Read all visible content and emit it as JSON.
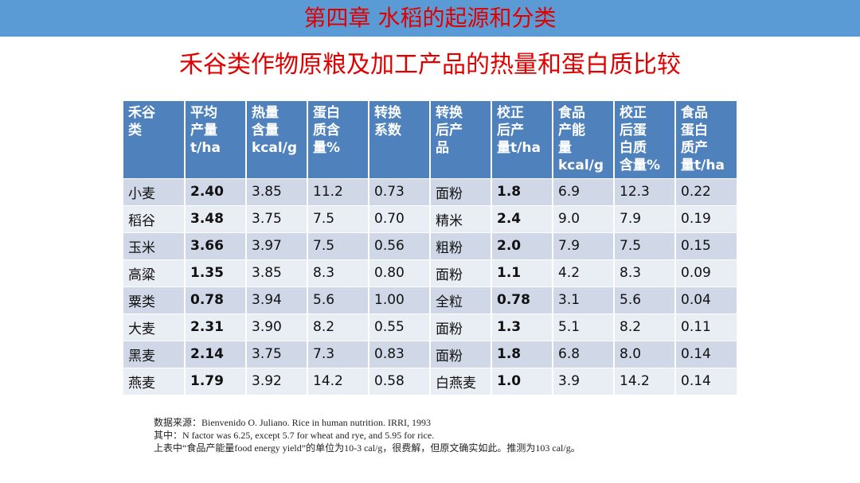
{
  "chapter_title": "第四章  水稻的起源和分类",
  "slide_title": "禾谷类作物原粮及加工产品的热量和蛋白质比较",
  "table": {
    "headers": [
      [
        "禾谷",
        "类"
      ],
      [
        "平均",
        "产量",
        "t/ha"
      ],
      [
        "热量",
        "含量",
        "kcal/g"
      ],
      [
        "蛋白",
        "质含",
        "量%"
      ],
      [
        "转换",
        "系数"
      ],
      [
        "转换",
        "后产",
        "品"
      ],
      [
        "校正",
        "后产",
        "量t/ha"
      ],
      [
        "食品",
        "产能",
        "量",
        "kcal/g"
      ],
      [
        "校正",
        "后蛋",
        "白质",
        "含量%"
      ],
      [
        "食品",
        "蛋白",
        "质产",
        "量t/ha"
      ]
    ],
    "rows": [
      [
        "小麦",
        "2.40",
        "3.85",
        "11.2",
        "0.73",
        "面粉",
        "1.8",
        "6.9",
        "12.3",
        "0.22"
      ],
      [
        "稻谷",
        "3.48",
        "3.75",
        "7.5",
        "0.70",
        "精米",
        "2.4",
        "9.0",
        "7.9",
        "0.19"
      ],
      [
        "玉米",
        "3.66",
        "3.97",
        "7.5",
        "0.56",
        "粗粉",
        "2.0",
        "7.9",
        "7.5",
        "0.15"
      ],
      [
        "高粱",
        "1.35",
        "3.85",
        "8.3",
        "0.80",
        "面粉",
        "1.1",
        "4.2",
        "8.3",
        "0.09"
      ],
      [
        "粟类",
        "0.78",
        "3.94",
        "5.6",
        "1.00",
        "全粒",
        "0.78",
        "3.1",
        "5.6",
        "0.04"
      ],
      [
        "大麦",
        "2.31",
        "3.90",
        "8.2",
        "0.55",
        "面粉",
        "1.3",
        "5.1",
        "8.2",
        "0.11"
      ],
      [
        "黑麦",
        "2.14",
        "3.75",
        "7.3",
        "0.83",
        "面粉",
        "1.8",
        "6.8",
        "8.0",
        "0.14"
      ],
      [
        "燕麦",
        "1.79",
        "3.92",
        "14.2",
        "0.58",
        "白燕麦",
        "1.0",
        "3.9",
        "14.2",
        "0.14"
      ]
    ]
  },
  "notes": [
    "数据来源：Bienvenido O. Juliano. Rice in human nutrition. IRRI, 1993",
    "其中：N factor was 6.25, except 5.7 for wheat and rye, and 5.95 for rice.",
    "上表中“食品产能量food energy yield”的单位为10-3 cal/g，很费解，但原文确实如此。推测为103 cal/g。"
  ],
  "colors": {
    "header_bar": "#5b9bd5",
    "title_red": "#e00000",
    "table_header": "#4f81bd",
    "row_dark": "#d0d8e8",
    "row_light": "#e9edf4"
  }
}
